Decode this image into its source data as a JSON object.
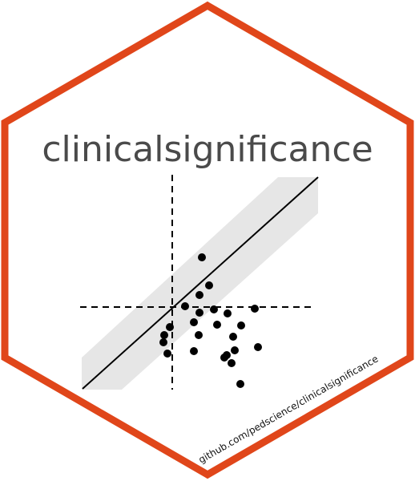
{
  "title": "clinicalsignificance",
  "url": "github.com/pedscience/clinicalsignificance",
  "colors": {
    "border": "#e0461a",
    "title": "#4a4a4a",
    "band": "#e6e6e6",
    "points": "#000000"
  },
  "icon": "scatter-plot-with-identity-line-and-cutoffs"
}
